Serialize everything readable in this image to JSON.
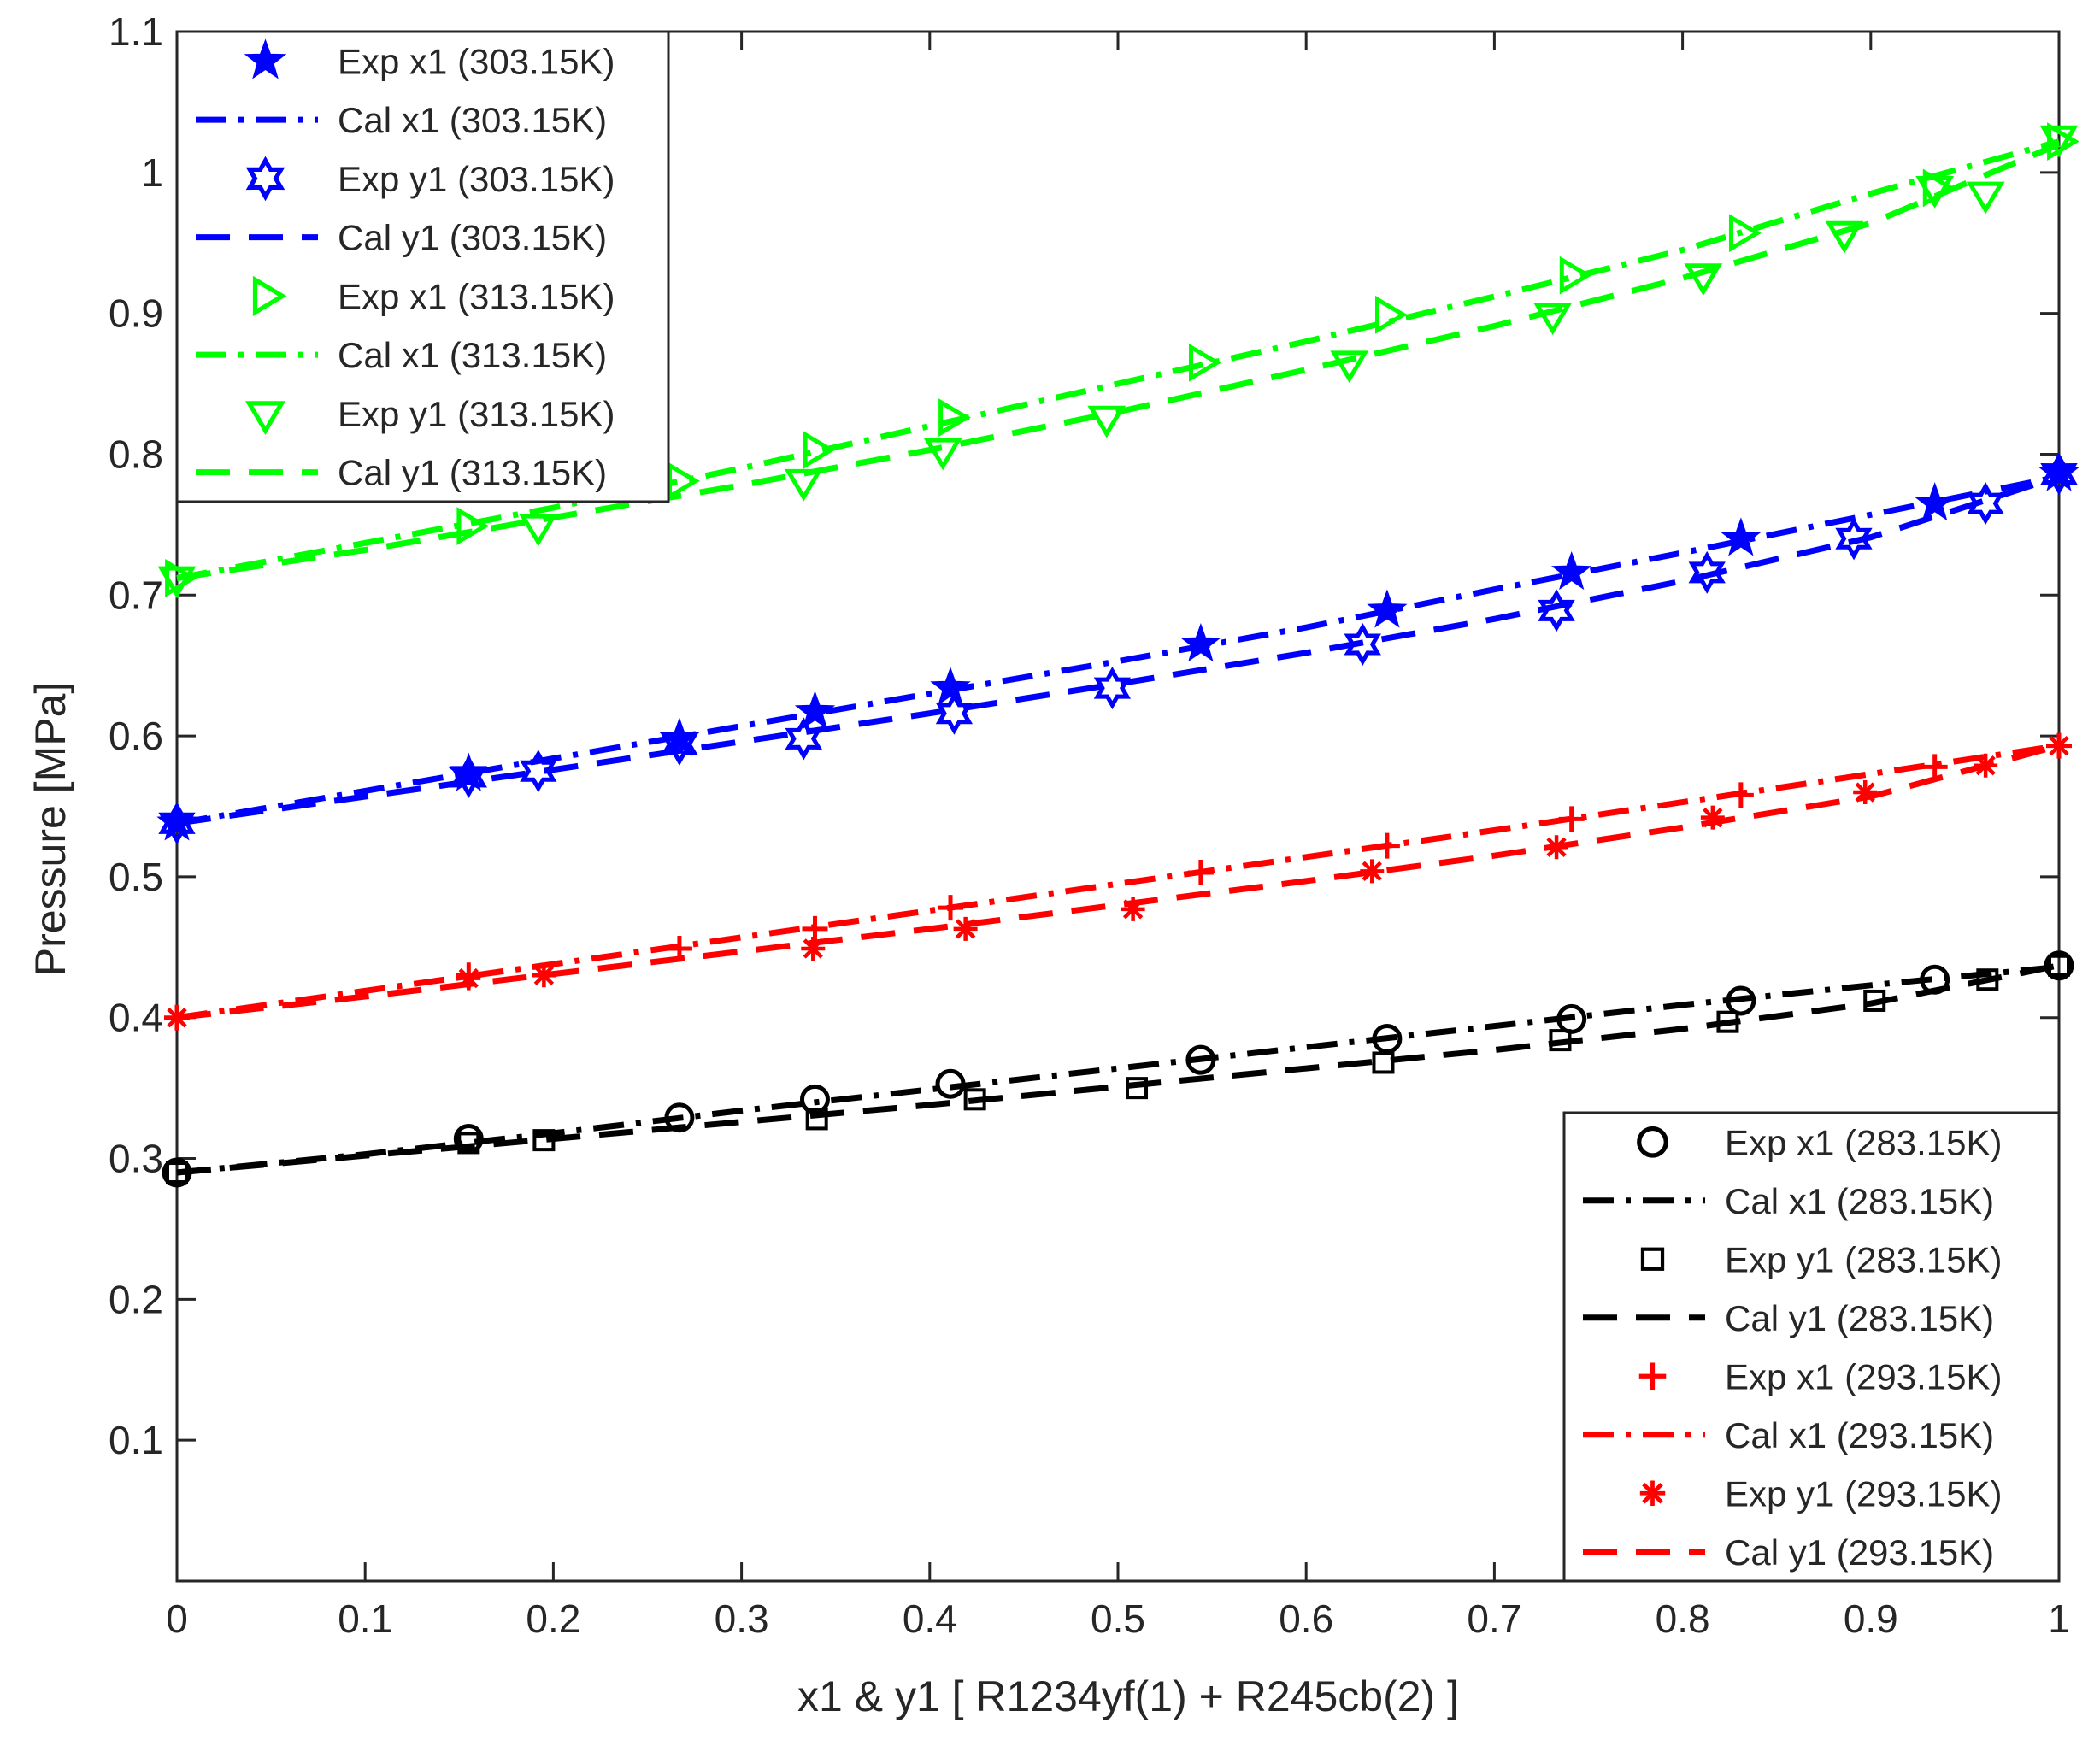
{
  "chart_data": {
    "type": "line",
    "title": "",
    "xlabel": "x1 & y1 [ R1234yf(1) + R245cb(2) ]",
    "ylabel": "Pressure [MPa]",
    "xlim": [
      0,
      1
    ],
    "ylim": [
      0,
      1.1
    ],
    "xticks": [
      0,
      0.1,
      0.2,
      0.3,
      0.4,
      0.5,
      0.6,
      0.7,
      0.8,
      0.9,
      1
    ],
    "xtick_labels": [
      "0",
      "0.1",
      "0.2",
      "0.3",
      "0.4",
      "0.5",
      "0.6",
      "0.7",
      "0.8",
      "0.9",
      "1"
    ],
    "yticks": [
      0.1,
      0.2,
      0.3,
      0.4,
      0.5,
      0.6,
      0.7,
      0.8,
      0.9,
      1,
      1.1
    ],
    "ytick_labels": [
      "0.1",
      "0.2",
      "0.3",
      "0.4",
      "0.5",
      "0.6",
      "0.7",
      "0.8",
      "0.9",
      "1",
      "1.1"
    ],
    "grid": false,
    "series": [
      {
        "name": "Exp x1 (303.15K)",
        "kind": "marker",
        "marker": "star",
        "color": "#0000FF",
        "x": [
          0,
          0.155,
          0.267,
          0.339,
          0.411,
          0.544,
          0.643,
          0.741,
          0.831,
          0.934,
          1.0
        ],
        "y": [
          0.538,
          0.573,
          0.598,
          0.617,
          0.634,
          0.665,
          0.689,
          0.716,
          0.74,
          0.765,
          0.786
        ]
      },
      {
        "name": "Cal x1 (303.15K)",
        "kind": "line",
        "dash": "dashdot",
        "color": "#0000FF",
        "x": [
          0,
          0.1,
          0.2,
          0.3,
          0.4,
          0.5,
          0.6,
          0.7,
          0.8,
          0.9,
          1.0
        ],
        "y": [
          0.538,
          0.561,
          0.584,
          0.607,
          0.63,
          0.653,
          0.677,
          0.704,
          0.73,
          0.757,
          0.784
        ]
      },
      {
        "name": "Exp y1 (303.15K)",
        "kind": "marker",
        "marker": "hexagram",
        "color": "#0000FF",
        "x": [
          0,
          0.155,
          0.192,
          0.267,
          0.333,
          0.413,
          0.497,
          0.63,
          0.733,
          0.813,
          0.891,
          0.961,
          1.0
        ],
        "y": [
          0.538,
          0.571,
          0.575,
          0.594,
          0.598,
          0.616,
          0.634,
          0.665,
          0.689,
          0.716,
          0.74,
          0.765,
          0.786
        ]
      },
      {
        "name": "Cal y1 (303.15K)",
        "kind": "line",
        "dash": "dashed",
        "color": "#0000FF",
        "x": [
          0,
          0.1,
          0.2,
          0.3,
          0.4,
          0.5,
          0.6,
          0.7,
          0.8,
          0.9,
          1.0
        ],
        "y": [
          0.538,
          0.557,
          0.576,
          0.596,
          0.616,
          0.637,
          0.659,
          0.683,
          0.71,
          0.741,
          0.784
        ]
      },
      {
        "name": "Exp x1 (313.15K)",
        "kind": "marker",
        "marker": "triangle-right",
        "color": "#00FF00",
        "x": [
          0,
          0.155,
          0.267,
          0.339,
          0.411,
          0.544,
          0.643,
          0.741,
          0.831,
          0.934,
          1.0
        ],
        "y": [
          0.712,
          0.749,
          0.781,
          0.803,
          0.826,
          0.865,
          0.899,
          0.927,
          0.957,
          0.989,
          1.022
        ]
      },
      {
        "name": "Cal x1 (313.15K)",
        "kind": "line",
        "dash": "dashdot",
        "color": "#00FF00",
        "x": [
          0,
          0.1,
          0.2,
          0.3,
          0.4,
          0.5,
          0.6,
          0.7,
          0.8,
          0.9,
          1.0
        ],
        "y": [
          0.712,
          0.737,
          0.762,
          0.79,
          0.82,
          0.85,
          0.88,
          0.912,
          0.945,
          0.985,
          1.022
        ]
      },
      {
        "name": "Exp y1 (313.15K)",
        "kind": "marker",
        "marker": "triangle-down",
        "color": "#00FF00",
        "x": [
          0,
          0.192,
          0.333,
          0.407,
          0.494,
          0.623,
          0.731,
          0.811,
          0.886,
          0.934,
          0.961,
          1.0
        ],
        "y": [
          0.712,
          0.749,
          0.781,
          0.803,
          0.826,
          0.865,
          0.899,
          0.927,
          0.957,
          0.989,
          0.985,
          1.025
        ]
      },
      {
        "name": "Cal y1 (313.15K)",
        "kind": "line",
        "dash": "dashed",
        "color": "#00FF00",
        "x": [
          0,
          0.1,
          0.2,
          0.3,
          0.4,
          0.5,
          0.6,
          0.7,
          0.8,
          0.9,
          1.0
        ],
        "y": [
          0.712,
          0.732,
          0.755,
          0.778,
          0.803,
          0.83,
          0.86,
          0.891,
          0.925,
          0.964,
          1.02
        ]
      },
      {
        "name": "Exp x1 (283.15K)",
        "kind": "marker",
        "marker": "circle",
        "color": "#000000",
        "x": [
          0,
          0.155,
          0.267,
          0.339,
          0.411,
          0.544,
          0.643,
          0.741,
          0.831,
          0.934,
          1.0
        ],
        "y": [
          0.29,
          0.314,
          0.329,
          0.342,
          0.353,
          0.37,
          0.385,
          0.399,
          0.412,
          0.427,
          0.437
        ]
      },
      {
        "name": "Cal x1 (283.15K)",
        "kind": "line",
        "dash": "dashdot",
        "color": "#000000",
        "x": [
          0,
          0.1,
          0.2,
          0.3,
          0.4,
          0.5,
          0.6,
          0.7,
          0.8,
          0.9,
          1.0
        ],
        "y": [
          0.29,
          0.303,
          0.318,
          0.334,
          0.349,
          0.364,
          0.379,
          0.394,
          0.409,
          0.423,
          0.436
        ]
      },
      {
        "name": "Exp y1 (283.15K)",
        "kind": "marker",
        "marker": "square",
        "color": "#000000",
        "x": [
          0,
          0.155,
          0.195,
          0.34,
          0.424,
          0.51,
          0.641,
          0.735,
          0.824,
          0.902,
          0.962,
          1.0
        ],
        "y": [
          0.29,
          0.311,
          0.313,
          0.328,
          0.342,
          0.35,
          0.368,
          0.384,
          0.397,
          0.412,
          0.427,
          0.437
        ]
      },
      {
        "name": "Cal y1 (283.15K)",
        "kind": "line",
        "dash": "dashed",
        "color": "#000000",
        "x": [
          0,
          0.1,
          0.2,
          0.3,
          0.4,
          0.5,
          0.6,
          0.7,
          0.8,
          0.9,
          1.0
        ],
        "y": [
          0.29,
          0.302,
          0.314,
          0.326,
          0.338,
          0.351,
          0.364,
          0.377,
          0.392,
          0.41,
          0.437
        ]
      },
      {
        "name": "Exp x1 (293.15K)",
        "kind": "marker",
        "marker": "plus",
        "color": "#FF0000",
        "x": [
          0,
          0.155,
          0.267,
          0.339,
          0.411,
          0.544,
          0.643,
          0.741,
          0.831,
          0.934,
          1.0
        ],
        "y": [
          0.4,
          0.43,
          0.449,
          0.463,
          0.478,
          0.503,
          0.522,
          0.541,
          0.558,
          0.578,
          0.593
        ]
      },
      {
        "name": "Cal x1 (293.15K)",
        "kind": "line",
        "dash": "dashdot",
        "color": "#FF0000",
        "x": [
          0,
          0.1,
          0.2,
          0.3,
          0.4,
          0.5,
          0.6,
          0.7,
          0.8,
          0.9,
          1.0
        ],
        "y": [
          0.4,
          0.419,
          0.438,
          0.457,
          0.476,
          0.495,
          0.514,
          0.533,
          0.553,
          0.573,
          0.593
        ]
      },
      {
        "name": "Exp y1 (293.15K)",
        "kind": "marker",
        "marker": "asterisk",
        "color": "#FF0000",
        "x": [
          0,
          0.155,
          0.195,
          0.338,
          0.419,
          0.508,
          0.635,
          0.733,
          0.816,
          0.897,
          0.961,
          1.0
        ],
        "y": [
          0.4,
          0.428,
          0.43,
          0.449,
          0.463,
          0.477,
          0.504,
          0.521,
          0.542,
          0.56,
          0.579,
          0.593
        ]
      },
      {
        "name": "Cal y1 (293.15K)",
        "kind": "line",
        "dash": "dashed",
        "color": "#FF0000",
        "x": [
          0,
          0.1,
          0.2,
          0.3,
          0.4,
          0.5,
          0.6,
          0.7,
          0.8,
          0.9,
          1.0
        ],
        "y": [
          0.4,
          0.415,
          0.431,
          0.447,
          0.463,
          0.48,
          0.497,
          0.515,
          0.535,
          0.557,
          0.593
        ]
      }
    ],
    "legends": [
      {
        "placement": "top-left",
        "entries": [
          {
            "label": "Exp x1 (303.15K)",
            "series": 0
          },
          {
            "label": "Cal x1 (303.15K)",
            "series": 1
          },
          {
            "label": "Exp y1 (303.15K)",
            "series": 2
          },
          {
            "label": "Cal y1 (303.15K)",
            "series": 3
          },
          {
            "label": "Exp x1 (313.15K)",
            "series": 4
          },
          {
            "label": "Cal x1 (313.15K)",
            "series": 5
          },
          {
            "label": "Exp y1 (313.15K)",
            "series": 6
          },
          {
            "label": "Cal y1 (313.15K)",
            "series": 7
          }
        ]
      },
      {
        "placement": "bottom-right",
        "entries": [
          {
            "label": "Exp x1 (283.15K)",
            "series": 8
          },
          {
            "label": "Cal x1 (283.15K)",
            "series": 9
          },
          {
            "label": "Exp y1 (283.15K)",
            "series": 10
          },
          {
            "label": "Cal y1 (283.15K)",
            "series": 11
          },
          {
            "label": "Exp x1 (293.15K)",
            "series": 12
          },
          {
            "label": "Cal x1 (293.15K)",
            "series": 13
          },
          {
            "label": "Exp y1 (293.15K)",
            "series": 14
          },
          {
            "label": "Cal y1 (293.15K)",
            "series": 15
          }
        ]
      }
    ]
  }
}
